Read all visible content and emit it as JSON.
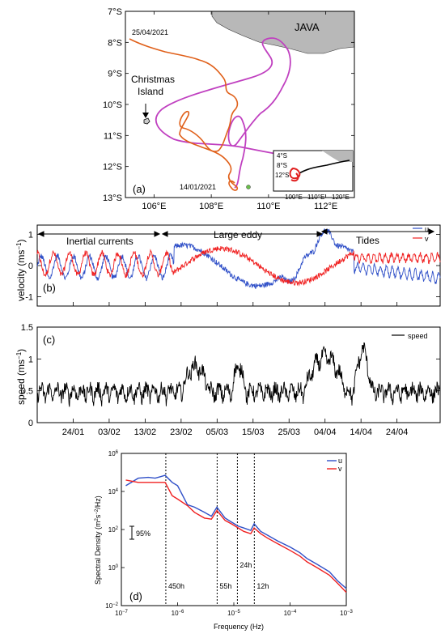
{
  "chart_data": [
    {
      "type": "map",
      "panel_label": "(a)",
      "lon_ticks": [
        "106°E",
        "108°E",
        "110°E",
        "112°E"
      ],
      "lat_ticks": [
        "7°S",
        "8°S",
        "9°S",
        "10°S",
        "11°S",
        "12°S",
        "13°S"
      ],
      "lon_range": [
        105,
        113
      ],
      "lat_range": [
        -13,
        -7
      ],
      "land_label": "JAVA",
      "annotations": [
        "25/04/2021",
        "Christmas Island",
        "14/01/2021"
      ],
      "track_colors": {
        "drifter_a": "#E0601A",
        "drifter_b": "#C040C0"
      },
      "inset": {
        "lon_ticks": [
          "100°E",
          "110°E",
          "120°E"
        ],
        "lat_ticks": [
          "4°S",
          "8°S",
          "12°S"
        ]
      }
    },
    {
      "type": "line",
      "panel_label": "(b)",
      "ylabel": "velocity (ms",
      "ylabel_sup": "−1",
      "ylabel_close": ")",
      "ylim": [
        -1.3,
        1.3
      ],
      "yticks": [
        "1",
        "0",
        "-1"
      ],
      "legend": [
        "u",
        "v"
      ],
      "series_colors": {
        "u": "#3050C8",
        "v": "#F02020"
      },
      "regimes": [
        "Inertial currents",
        "Large eddy",
        "Tides"
      ]
    },
    {
      "type": "line",
      "panel_label": "(c)",
      "ylabel": "speed (ms",
      "ylabel_sup": "−1",
      "ylabel_close": ")",
      "ylim": [
        0,
        1.5
      ],
      "yticks": [
        "1.5",
        "1",
        "0.5",
        "0"
      ],
      "xticks": [
        "24/01",
        "03/02",
        "13/02",
        "23/02",
        "05/03",
        "15/03",
        "25/03",
        "04/04",
        "14/04",
        "24/04"
      ],
      "legend": [
        "speed"
      ]
    },
    {
      "type": "line",
      "panel_label": "(d)",
      "xlabel": "Frequency (Hz)",
      "ylabel": "Spectral Density (m",
      "ylabel_sup1": "2",
      "ylabel_mid": "s",
      "ylabel_sup2": "−2",
      "ylabel_close": "/Hz)",
      "xscale": "log",
      "yscale": "log",
      "xticks": [
        {
          "b": "10",
          "e": "−7"
        },
        {
          "b": "10",
          "e": "−6"
        },
        {
          "b": "10",
          "e": "−5"
        },
        {
          "b": "10",
          "e": "−4"
        },
        {
          "b": "10",
          "e": "−3"
        }
      ],
      "yticks": [
        {
          "b": "10",
          "e": "6"
        },
        {
          "b": "10",
          "e": "4"
        },
        {
          "b": "10",
          "e": "2"
        },
        {
          "b": "10",
          "e": "0"
        },
        {
          "b": "10",
          "e": "−2"
        }
      ],
      "legend": [
        "u",
        "v"
      ],
      "periods": [
        "450h",
        "55h",
        "24h",
        "12h"
      ],
      "confidence_label": "95%",
      "u_spectrum": {
        "frequency": [
          1.2e-07,
          2e-07,
          3e-07,
          4e-07,
          5e-07,
          6e-07,
          8e-07,
          1e-06,
          1.5e-06,
          2e-06,
          3e-06,
          4e-06,
          5e-06,
          7e-06,
          9e-06,
          1.2e-05,
          1.5e-05,
          2e-05,
          2.3e-05,
          3e-05,
          4e-05,
          6e-05,
          0.0001,
          0.00015,
          0.0002,
          0.0003,
          0.0005,
          0.0007,
          0.001
        ],
        "psd": [
          20000,
          50000,
          55000,
          50000,
          60000,
          70000,
          30000,
          20000,
          2000,
          1500,
          800,
          500,
          1500,
          400,
          250,
          150,
          120,
          90,
          200,
          80,
          50,
          25,
          12,
          6,
          3,
          1.5,
          0.6,
          0.2,
          0.08
        ]
      },
      "v_spectrum": {
        "frequency": [
          1.2e-07,
          2e-07,
          3e-07,
          4e-07,
          5e-07,
          6e-07,
          8e-07,
          1e-06,
          1.5e-06,
          2e-06,
          3e-06,
          4e-06,
          5e-06,
          7e-06,
          9e-06,
          1.2e-05,
          1.5e-05,
          2e-05,
          2.3e-05,
          3e-05,
          4e-05,
          6e-05,
          0.0001,
          0.00015,
          0.0002,
          0.0003,
          0.0005,
          0.0007,
          0.001
        ],
        "psd": [
          40000,
          30000,
          30000,
          30000,
          30000,
          30000,
          6000,
          4000,
          1800,
          800,
          400,
          350,
          1000,
          300,
          200,
          120,
          80,
          60,
          120,
          60,
          35,
          18,
          8,
          4,
          2,
          1,
          0.4,
          0.15,
          0.05
        ]
      }
    }
  ]
}
